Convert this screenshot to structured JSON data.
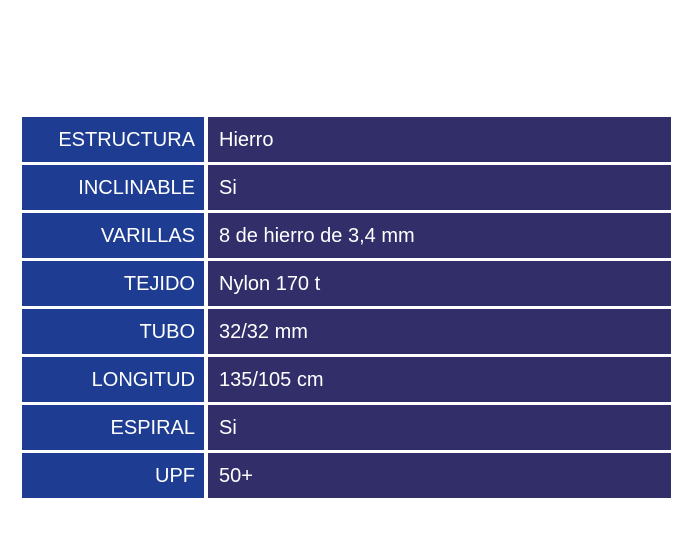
{
  "colors": {
    "label_bg": "#1e3d92",
    "value_bg": "#322e6a",
    "divider": "#ffffff",
    "text": "#ffffff",
    "page_bg": "#ffffff"
  },
  "spec_table": {
    "rows": [
      {
        "label": "ESTRUCTURA",
        "value": "Hierro"
      },
      {
        "label": "INCLINABLE",
        "value": "Si"
      },
      {
        "label": "VARILLAS",
        "value": "8 de hierro de 3,4 mm"
      },
      {
        "label": "TEJIDO",
        "value": "Nylon 170 t"
      },
      {
        "label": "TUBO",
        "value": "32/32 mm"
      },
      {
        "label": "LONGITUD",
        "value": "135/105 cm"
      },
      {
        "label": "ESPIRAL",
        "value": "Si"
      },
      {
        "label": "UPF",
        "value": "50+"
      }
    ]
  }
}
